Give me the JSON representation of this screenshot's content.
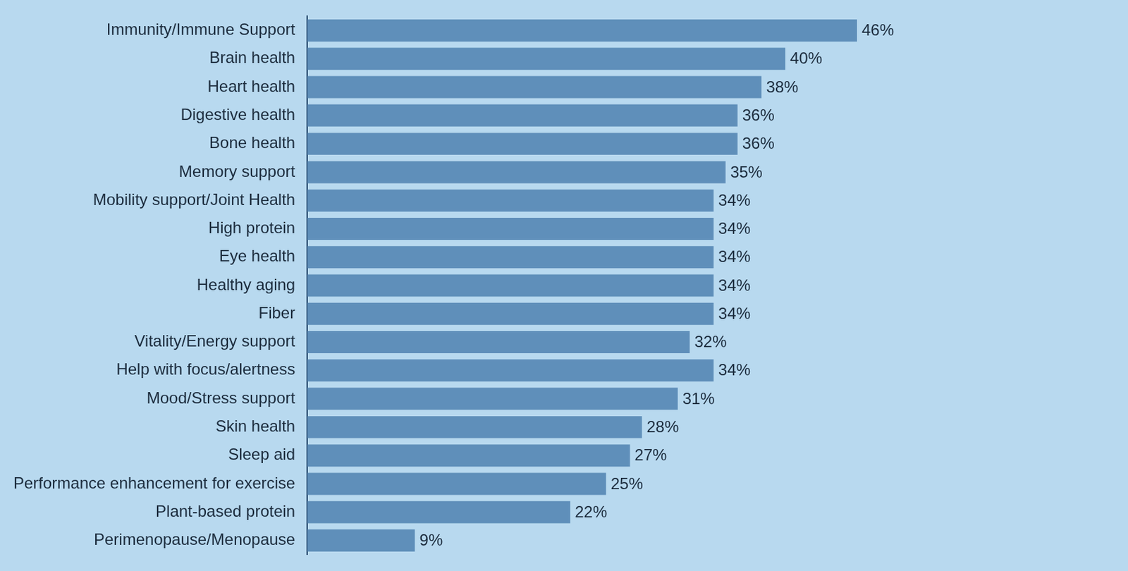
{
  "chart_data": {
    "type": "bar",
    "orientation": "horizontal",
    "categories": [
      "Immunity/Immune Support",
      "Brain health",
      "Heart health",
      "Digestive health",
      "Bone health",
      "Memory support",
      "Mobility support/Joint Health",
      "High protein",
      "Eye health",
      "Healthy aging",
      "Fiber",
      "Vitality/Energy support",
      "Help with focus/alertness",
      "Mood/Stress support",
      "Skin health",
      "Sleep aid",
      "Performance enhancement for exercise",
      "Plant-based protein",
      "Perimenopause/Menopause"
    ],
    "values": [
      46,
      40,
      38,
      36,
      36,
      35,
      34,
      34,
      34,
      34,
      34,
      32,
      34,
      31,
      28,
      27,
      25,
      22,
      9
    ],
    "value_labels": [
      "46%",
      "40%",
      "38%",
      "36%",
      "36%",
      "35%",
      "34%",
      "34%",
      "34%",
      "34%",
      "34%",
      "32%",
      "34%",
      "31%",
      "28%",
      "27%",
      "25%",
      "22%",
      "9%"
    ],
    "color": "#5f8fba",
    "xlim": [
      0,
      68
    ],
    "grid": false,
    "data_labels": true,
    "tick_labels": "y"
  }
}
